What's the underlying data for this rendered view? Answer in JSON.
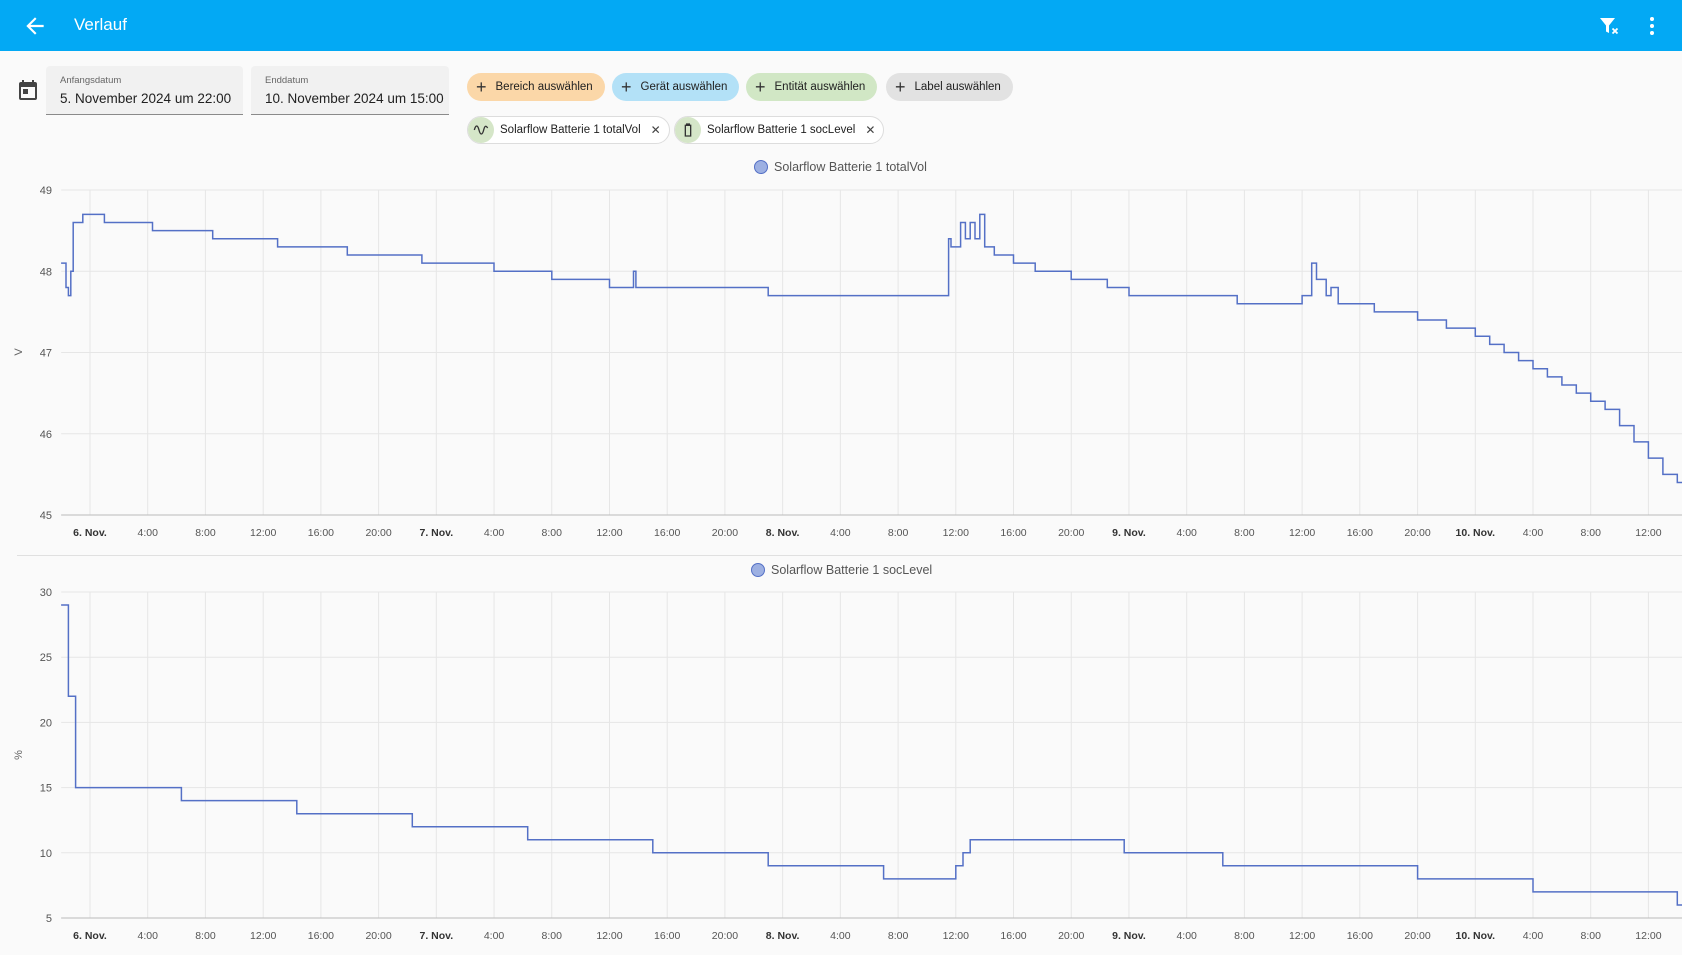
{
  "header": {
    "title": "Verlauf",
    "back_icon": "arrow-left-icon",
    "filter_clear_icon": "filter-remove-icon",
    "menu_icon": "dots-vertical-icon",
    "color": "#03a9f4"
  },
  "date_range": {
    "icon": "calendar-icon",
    "start": {
      "label": "Anfangsdatum",
      "value": "5. November 2024 um 22:00"
    },
    "end": {
      "label": "Enddatum",
      "value": "10. November 2024 um 15:00"
    }
  },
  "target_picker": {
    "add_chips": [
      {
        "label": "Bereich auswählen",
        "color": "#fbd7a8"
      },
      {
        "label": "Gerät auswählen",
        "color": "#b3e1f7"
      },
      {
        "label": "Entität auswählen",
        "color": "#d1e7c5"
      },
      {
        "label": "Label auswählen",
        "color": "#e2e2e2"
      }
    ],
    "selected": [
      {
        "label": "Solarflow Batterie 1 totalVol",
        "icon": "sine-wave-icon"
      },
      {
        "label": "Solarflow Batterie 1 socLevel",
        "icon": "battery-icon"
      }
    ]
  },
  "chart_data": [
    {
      "type": "line",
      "title": "",
      "legend": "Solarflow Batterie 1 totalVol",
      "ylabel": "V",
      "ylim": [
        45,
        49
      ],
      "yticks": [
        "45",
        "46",
        "47",
        "48",
        "49"
      ],
      "xticks": [
        "6. Nov.",
        "4:00",
        "8:00",
        "12:00",
        "16:00",
        "20:00",
        "7. Nov.",
        "4:00",
        "8:00",
        "12:00",
        "16:00",
        "20:00",
        "8. Nov.",
        "4:00",
        "8:00",
        "12:00",
        "16:00",
        "20:00",
        "9. Nov.",
        "4:00",
        "8:00",
        "12:00",
        "16:00",
        "20:00",
        "10. Nov.",
        "4:00",
        "8:00",
        "12:00"
      ],
      "color": "#5470c6",
      "series": [
        {
          "name": "Solarflow Batterie 1 totalVol",
          "points": [
            [
              "11-05 22:00",
              48.1
            ],
            [
              "11-05 22:20",
              47.8
            ],
            [
              "11-05 22:30",
              47.7
            ],
            [
              "11-05 22:40",
              48.0
            ],
            [
              "11-05 22:50",
              48.6
            ],
            [
              "11-05 23:30",
              48.7
            ],
            [
              "11-06 01:00",
              48.6
            ],
            [
              "11-06 04:20",
              48.5
            ],
            [
              "11-06 08:30",
              48.4
            ],
            [
              "11-06 13:00",
              48.3
            ],
            [
              "11-06 17:50",
              48.2
            ],
            [
              "11-06 23:00",
              48.1
            ],
            [
              "11-07 04:00",
              48.0
            ],
            [
              "11-07 08:00",
              47.9
            ],
            [
              "11-07 12:00",
              47.8
            ],
            [
              "11-07 13:40",
              48.0
            ],
            [
              "11-07 13:50",
              47.8
            ],
            [
              "11-07 23:00",
              47.7
            ],
            [
              "11-08 11:30",
              48.4
            ],
            [
              "11-08 11:40",
              48.3
            ],
            [
              "11-08 12:20",
              48.6
            ],
            [
              "11-08 12:40",
              48.4
            ],
            [
              "11-08 13:00",
              48.6
            ],
            [
              "11-08 13:20",
              48.4
            ],
            [
              "11-08 13:40",
              48.7
            ],
            [
              "11-08 14:00",
              48.3
            ],
            [
              "11-08 14:40",
              48.2
            ],
            [
              "11-08 16:00",
              48.1
            ],
            [
              "11-08 17:30",
              48.0
            ],
            [
              "11-08 20:00",
              47.9
            ],
            [
              "11-08 22:30",
              47.8
            ],
            [
              "11-09 00:00",
              47.7
            ],
            [
              "11-09 07:30",
              47.6
            ],
            [
              "11-09 12:00",
              47.7
            ],
            [
              "11-09 12:40",
              48.1
            ],
            [
              "11-09 13:00",
              47.9
            ],
            [
              "11-09 13:40",
              47.7
            ],
            [
              "11-09 14:00",
              47.8
            ],
            [
              "11-09 14:30",
              47.6
            ],
            [
              "11-09 17:00",
              47.5
            ],
            [
              "11-09 20:00",
              47.4
            ],
            [
              "11-09 22:00",
              47.3
            ],
            [
              "11-10 00:00",
              47.2
            ],
            [
              "11-10 01:00",
              47.1
            ],
            [
              "11-10 02:00",
              47.0
            ],
            [
              "11-10 03:00",
              46.9
            ],
            [
              "11-10 04:00",
              46.8
            ],
            [
              "11-10 05:00",
              46.7
            ],
            [
              "11-10 06:00",
              46.6
            ],
            [
              "11-10 07:00",
              46.5
            ],
            [
              "11-10 08:00",
              46.4
            ],
            [
              "11-10 09:00",
              46.3
            ],
            [
              "11-10 10:00",
              46.1
            ],
            [
              "11-10 11:00",
              45.9
            ],
            [
              "11-10 12:00",
              45.7
            ],
            [
              "11-10 13:00",
              45.5
            ],
            [
              "11-10 14:00",
              45.4
            ],
            [
              "11-10 15:00",
              45.3
            ]
          ]
        }
      ]
    },
    {
      "type": "line",
      "title": "",
      "legend": "Solarflow Batterie 1 socLevel",
      "ylabel": "%",
      "ylim": [
        5,
        30
      ],
      "yticks": [
        "5",
        "10",
        "15",
        "20",
        "25",
        "30"
      ],
      "xticks": [
        "6. Nov.",
        "4:00",
        "8:00",
        "12:00",
        "16:00",
        "20:00",
        "7. Nov.",
        "4:00",
        "8:00",
        "12:00",
        "16:00",
        "20:00",
        "8. Nov.",
        "4:00",
        "8:00",
        "12:00",
        "16:00",
        "20:00",
        "9. Nov.",
        "4:00",
        "8:00",
        "12:00",
        "16:00",
        "20:00",
        "10. Nov.",
        "4:00",
        "8:00",
        "12:00"
      ],
      "color": "#5470c6",
      "series": [
        {
          "name": "Solarflow Batterie 1 socLevel",
          "points": [
            [
              "11-05 22:00",
              29
            ],
            [
              "11-05 22:30",
              22
            ],
            [
              "11-05 23:00",
              15
            ],
            [
              "11-06 06:20",
              14
            ],
            [
              "11-06 14:20",
              13
            ],
            [
              "11-06 22:20",
              12
            ],
            [
              "11-07 06:20",
              11
            ],
            [
              "11-07 15:00",
              10
            ],
            [
              "11-07 23:00",
              9
            ],
            [
              "11-08 07:00",
              8
            ],
            [
              "11-08 12:00",
              9
            ],
            [
              "11-08 12:30",
              10
            ],
            [
              "11-08 13:00",
              11
            ],
            [
              "11-08 23:40",
              10
            ],
            [
              "11-09 06:30",
              9
            ],
            [
              "11-09 20:00",
              8
            ],
            [
              "11-10 04:00",
              7
            ],
            [
              "11-10 14:00",
              6
            ],
            [
              "11-10 15:00",
              6
            ]
          ]
        }
      ]
    }
  ]
}
